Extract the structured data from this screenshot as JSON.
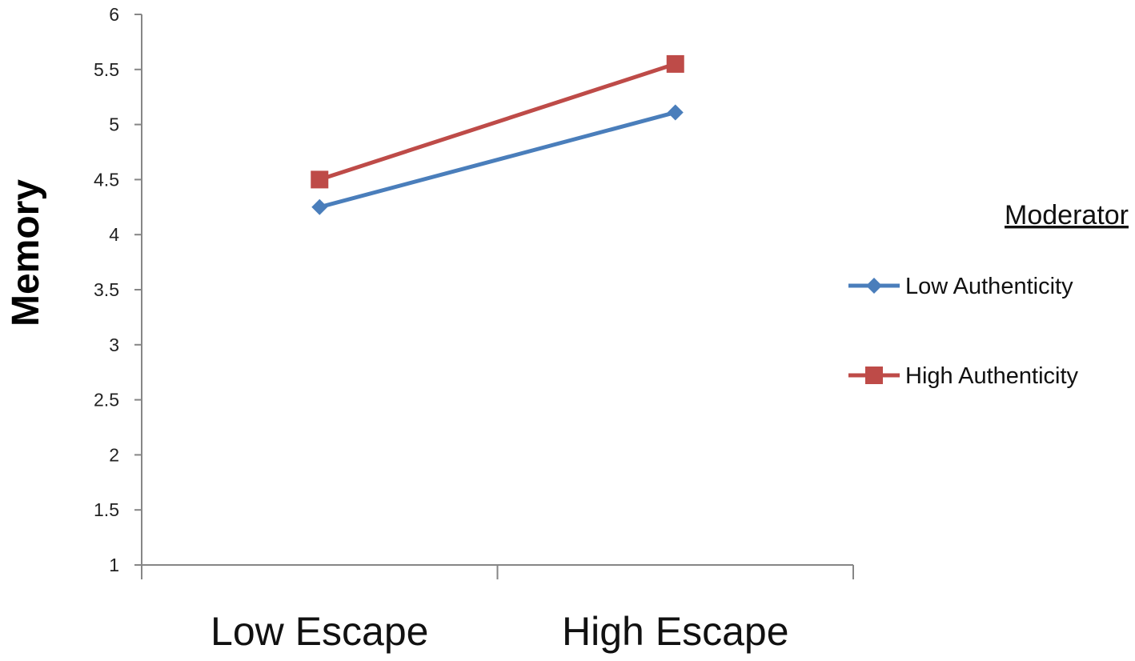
{
  "chart_data": {
    "type": "line",
    "categories": [
      "Low Escape",
      "High Escape"
    ],
    "series": [
      {
        "name": "Low Authenticity",
        "values": [
          4.25,
          5.11
        ],
        "color": "#4a7ebb",
        "marker": "diamond"
      },
      {
        "name": "High Authenticity",
        "values": [
          4.5,
          5.55
        ],
        "color": "#be4b48",
        "marker": "square"
      }
    ],
    "title": "",
    "xlabel": "",
    "ylabel": "Memory",
    "ylim": [
      1,
      6
    ],
    "yticks": [
      "1",
      "1.5",
      "2",
      "2.5",
      "3",
      "3.5",
      "4",
      "4.5",
      "5",
      "5.5",
      "6"
    ],
    "grid": false,
    "legend": {
      "title": "Moderator",
      "position": "right"
    },
    "axis_color": "#868686"
  }
}
